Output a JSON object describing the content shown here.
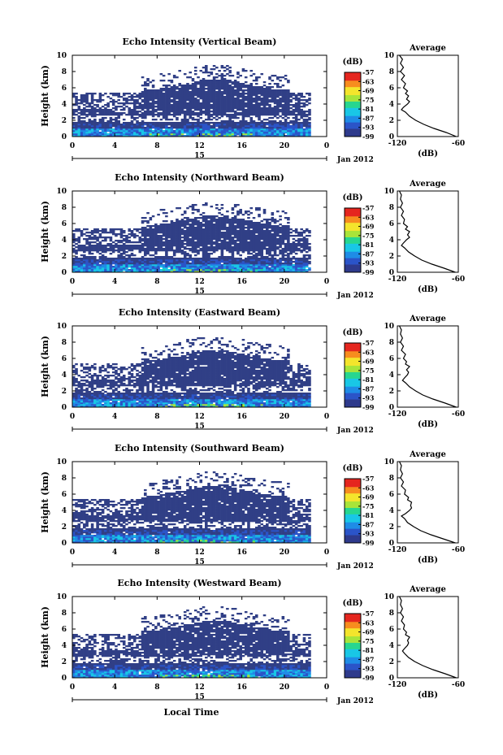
{
  "figure": {
    "ylabel": "Height (km)",
    "xlabel": "Local Time",
    "date_label": "Jan 2012",
    "day_label": "15",
    "colorbar_unit": "(dB)",
    "avg_title": "Average",
    "avg_xlabel": "(dB)"
  },
  "chart_data": [
    {
      "type": "heatmap",
      "title": "Echo Intensity (Vertical Beam)",
      "ylabel": "Height (km)",
      "xlim": [
        0,
        24
      ],
      "ylim": [
        0,
        10
      ],
      "x_ticks": [
        "0",
        "4",
        "8",
        "12",
        "16",
        "20",
        "0"
      ],
      "y_ticks": [
        "0",
        "2",
        "4",
        "6",
        "8",
        "10"
      ],
      "colorbar": {
        "unit": "(dB)",
        "ticks": [
          "-57",
          "-63",
          "-69",
          "-75",
          "-81",
          "-87",
          "-93",
          "-99"
        ],
        "range": [
          -99,
          -57
        ]
      },
      "average_profile": {
        "title": "Average",
        "xlabel": "(dB)",
        "xlim": [
          -120,
          -60
        ],
        "x_ticks": [
          "-120",
          "-60"
        ],
        "y_ticks": [
          "0",
          "2",
          "4",
          "6",
          "8",
          "10"
        ],
        "height_km": [
          0,
          0.5,
          1,
          1.5,
          2,
          2.5,
          3,
          3.3,
          3.6,
          4,
          4.3,
          4.6,
          5,
          5.3,
          5.6,
          6,
          6.5,
          7,
          7.5,
          8,
          8.5,
          9,
          9.5,
          10
        ],
        "db": [
          -62,
          -72,
          -84,
          -94,
          -102,
          -108,
          -112,
          -116,
          -114,
          -110,
          -108,
          -111,
          -109,
          -112,
          -110,
          -114,
          -112,
          -116,
          -113,
          -117,
          -114,
          -117,
          -115,
          -118
        ]
      }
    },
    {
      "type": "heatmap",
      "title": "Echo Intensity (Northward Beam)",
      "ylabel": "Height (km)",
      "xlim": [
        0,
        24
      ],
      "ylim": [
        0,
        10
      ],
      "x_ticks": [
        "0",
        "4",
        "8",
        "12",
        "16",
        "20",
        "0"
      ],
      "y_ticks": [
        "0",
        "2",
        "4",
        "6",
        "8",
        "10"
      ],
      "colorbar": {
        "unit": "(dB)",
        "ticks": [
          "-57",
          "-63",
          "-69",
          "-75",
          "-81",
          "-87",
          "-93",
          "-99"
        ],
        "range": [
          -99,
          -57
        ]
      },
      "average_profile": {
        "title": "Average",
        "xlabel": "(dB)",
        "xlim": [
          -120,
          -60
        ],
        "x_ticks": [
          "-120",
          "-60"
        ],
        "y_ticks": [
          "0",
          "2",
          "4",
          "6",
          "8",
          "10"
        ],
        "height_km": [
          0,
          0.5,
          1,
          1.5,
          2,
          2.5,
          3,
          3.3,
          3.6,
          4,
          4.3,
          4.6,
          5,
          5.3,
          5.6,
          6,
          6.5,
          7,
          7.5,
          8,
          8.5,
          9,
          9.5,
          10
        ],
        "db": [
          -63,
          -74,
          -86,
          -96,
          -103,
          -109,
          -113,
          -116,
          -114,
          -111,
          -108,
          -110,
          -108,
          -112,
          -110,
          -114,
          -113,
          -116,
          -114,
          -117,
          -115,
          -117,
          -116,
          -118
        ]
      }
    },
    {
      "type": "heatmap",
      "title": "Echo Intensity (Eastward Beam)",
      "ylabel": "Height (km)",
      "xlim": [
        0,
        24
      ],
      "ylim": [
        0,
        10
      ],
      "x_ticks": [
        "0",
        "4",
        "8",
        "12",
        "16",
        "20",
        "0"
      ],
      "y_ticks": [
        "0",
        "2",
        "4",
        "6",
        "8",
        "10"
      ],
      "colorbar": {
        "unit": "(dB)",
        "ticks": [
          "-57",
          "-63",
          "-69",
          "-75",
          "-81",
          "-87",
          "-93",
          "-99"
        ],
        "range": [
          -99,
          -57
        ]
      },
      "average_profile": {
        "title": "Average",
        "xlabel": "(dB)",
        "xlim": [
          -120,
          -60
        ],
        "x_ticks": [
          "-120",
          "-60"
        ],
        "y_ticks": [
          "0",
          "2",
          "4",
          "6",
          "8",
          "10"
        ],
        "height_km": [
          0,
          0.5,
          1,
          1.5,
          2,
          2.5,
          3,
          3.3,
          3.6,
          4,
          4.3,
          4.6,
          5,
          5.3,
          5.6,
          6,
          6.5,
          7,
          7.5,
          8,
          8.5,
          9,
          9.5,
          10
        ],
        "db": [
          -62,
          -73,
          -85,
          -95,
          -102,
          -108,
          -112,
          -115,
          -113,
          -110,
          -109,
          -111,
          -108,
          -112,
          -111,
          -114,
          -112,
          -116,
          -114,
          -117,
          -115,
          -117,
          -116,
          -118
        ]
      }
    },
    {
      "type": "heatmap",
      "title": "Echo Intensity (Southward Beam)",
      "ylabel": "Height (km)",
      "xlim": [
        0,
        24
      ],
      "ylim": [
        0,
        10
      ],
      "x_ticks": [
        "0",
        "4",
        "8",
        "12",
        "16",
        "20",
        "0"
      ],
      "y_ticks": [
        "0",
        "2",
        "4",
        "6",
        "8",
        "10"
      ],
      "colorbar": {
        "unit": "(dB)",
        "ticks": [
          "-57",
          "-63",
          "-69",
          "-75",
          "-81",
          "-87",
          "-93",
          "-99"
        ],
        "range": [
          -99,
          -57
        ]
      },
      "average_profile": {
        "title": "Average",
        "xlabel": "(dB)",
        "xlim": [
          -120,
          -60
        ],
        "x_ticks": [
          "-120",
          "-60"
        ],
        "y_ticks": [
          "0",
          "2",
          "4",
          "6",
          "8",
          "10"
        ],
        "height_km": [
          0,
          0.5,
          1,
          1.5,
          2,
          2.5,
          3,
          3.3,
          3.6,
          4,
          4.3,
          4.6,
          5,
          5.3,
          5.6,
          6,
          6.5,
          7,
          7.5,
          8,
          8.5,
          9,
          9.5,
          10
        ],
        "db": [
          -63,
          -75,
          -87,
          -97,
          -104,
          -110,
          -113,
          -116,
          -112,
          -108,
          -106,
          -107,
          -106,
          -110,
          -109,
          -113,
          -112,
          -116,
          -114,
          -117,
          -115,
          -117,
          -116,
          -118
        ]
      }
    },
    {
      "type": "heatmap",
      "title": "Echo Intensity (Westward Beam)",
      "ylabel": "Height (km)",
      "xlim": [
        0,
        24
      ],
      "ylim": [
        0,
        10
      ],
      "x_ticks": [
        "0",
        "4",
        "8",
        "12",
        "16",
        "20",
        "0"
      ],
      "y_ticks": [
        "0",
        "2",
        "4",
        "6",
        "8",
        "10"
      ],
      "colorbar": {
        "unit": "(dB)",
        "ticks": [
          "-57",
          "-63",
          "-69",
          "-75",
          "-81",
          "-87",
          "-93",
          "-99"
        ],
        "range": [
          -99,
          -57
        ]
      },
      "average_profile": {
        "title": "Average",
        "xlabel": "(dB)",
        "xlim": [
          -120,
          -60
        ],
        "x_ticks": [
          "-120",
          "-60"
        ],
        "y_ticks": [
          "0",
          "2",
          "4",
          "6",
          "8",
          "10"
        ],
        "height_km": [
          0,
          0.5,
          1,
          1.5,
          2,
          2.5,
          3,
          3.3,
          3.6,
          4,
          4.3,
          4.6,
          5,
          5.3,
          5.6,
          6,
          6.5,
          7,
          7.5,
          8,
          8.5,
          9,
          9.5,
          10
        ],
        "db": [
          -62,
          -73,
          -85,
          -95,
          -103,
          -109,
          -113,
          -115,
          -113,
          -110,
          -109,
          -110,
          -108,
          -112,
          -111,
          -114,
          -113,
          -116,
          -114,
          -117,
          -115,
          -117,
          -116,
          -118
        ]
      }
    }
  ],
  "colors": {
    "background_echo": "#303f86",
    "colormap": [
      "#2e3a8c",
      "#2b54c8",
      "#1f8ce6",
      "#19c7e6",
      "#27d690",
      "#a8e43a",
      "#f4e52c",
      "#f78d1f",
      "#e5261f"
    ]
  }
}
